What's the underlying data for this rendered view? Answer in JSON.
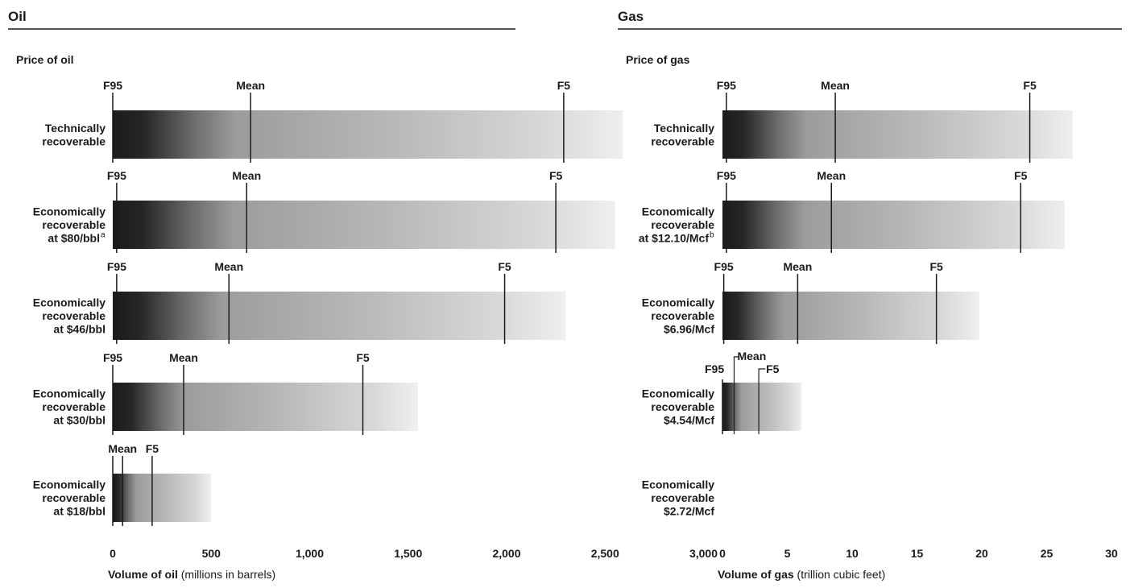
{
  "chart_data": [
    {
      "type": "bar",
      "title": "Oil",
      "subtitle": "Price of oil",
      "xlabel_bold": "Volume of oil",
      "xlabel_rest": "(millions in barrels)",
      "xlim": [
        0,
        3000
      ],
      "xticks": [
        0,
        500,
        1000,
        1500,
        2000,
        2500,
        3000
      ],
      "xtick_labels": [
        "0",
        "500",
        "1,000",
        "1,500",
        "2,000",
        "2,500",
        "3,000"
      ],
      "rows": [
        {
          "lines": [
            "Technically",
            "recoverable"
          ],
          "sup": "",
          "f95": 0,
          "mean": 700,
          "f5": 2290,
          "max": 2590,
          "labels": {
            "f95": "F95",
            "mean": "Mean",
            "f5": "F5"
          }
        },
        {
          "lines": [
            "Economically",
            "recoverable",
            "at $80/bbl"
          ],
          "sup": "a",
          "f95": 20,
          "mean": 680,
          "f5": 2250,
          "max": 2550,
          "labels": {
            "f95": "F95",
            "mean": "Mean",
            "f5": "F5"
          }
        },
        {
          "lines": [
            "Economically",
            "recoverable",
            "at $46/bbl"
          ],
          "sup": "",
          "f95": 20,
          "mean": 590,
          "f5": 1990,
          "max": 2300,
          "labels": {
            "f95": "F95",
            "mean": "Mean",
            "f5": "F5"
          }
        },
        {
          "lines": [
            "Economically",
            "recoverable",
            "at $30/bbl"
          ],
          "sup": "",
          "f95": 0,
          "mean": 360,
          "f5": 1270,
          "max": 1550,
          "labels": {
            "f95": "F95",
            "mean": "Mean",
            "f5": "F5"
          }
        },
        {
          "lines": [
            "Economically",
            "recoverable",
            "at $18/bbl"
          ],
          "sup": "",
          "f95": 0,
          "mean": 50,
          "f5": 200,
          "max": 500,
          "labels": {
            "mean": "Mean",
            "f5": "F5"
          }
        }
      ]
    },
    {
      "type": "bar",
      "title": "Gas",
      "subtitle": "Price of gas",
      "xlabel_bold": "Volume of gas",
      "xlabel_rest": "(trillion cubic feet)",
      "xlim": [
        0,
        30
      ],
      "xticks": [
        0,
        5,
        10,
        15,
        20,
        25,
        30
      ],
      "xtick_labels": [
        "0",
        "5",
        "10",
        "15",
        "20",
        "25",
        "30"
      ],
      "rows": [
        {
          "lines": [
            "Technically",
            "recoverable"
          ],
          "sup": "",
          "f95": 0.3,
          "mean": 8.7,
          "f5": 23.7,
          "max": 27.0,
          "labels": {
            "f95": "F95",
            "mean": "Mean",
            "f5": "F5"
          }
        },
        {
          "lines": [
            "Economically",
            "recoverable",
            "at $12.10/Mcf"
          ],
          "sup": "b",
          "f95": 0.3,
          "mean": 8.4,
          "f5": 23.0,
          "max": 26.4,
          "labels": {
            "f95": "F95",
            "mean": "Mean",
            "f5": "F5"
          }
        },
        {
          "lines": [
            "Economically",
            "recoverable",
            "$6.96/Mcf"
          ],
          "sup": "",
          "f95": 0.1,
          "mean": 5.8,
          "f5": 16.5,
          "max": 19.8,
          "labels": {
            "f95": "F95",
            "mean": "Mean",
            "f5": "F5"
          }
        },
        {
          "lines": [
            "Economically",
            "recoverable",
            "$4.54/Mcf"
          ],
          "sup": "",
          "f95": 0.0,
          "mean": 0.9,
          "f5": 2.8,
          "max": 6.1,
          "labels": {
            "f95": "F95",
            "mean": "Mean",
            "f5": "F5"
          }
        },
        {
          "lines": [
            "Economically",
            "recoverable",
            "$2.72/Mcf"
          ],
          "sup": "",
          "f95": null,
          "mean": null,
          "f5": null,
          "max": null,
          "labels": {}
        }
      ]
    }
  ]
}
